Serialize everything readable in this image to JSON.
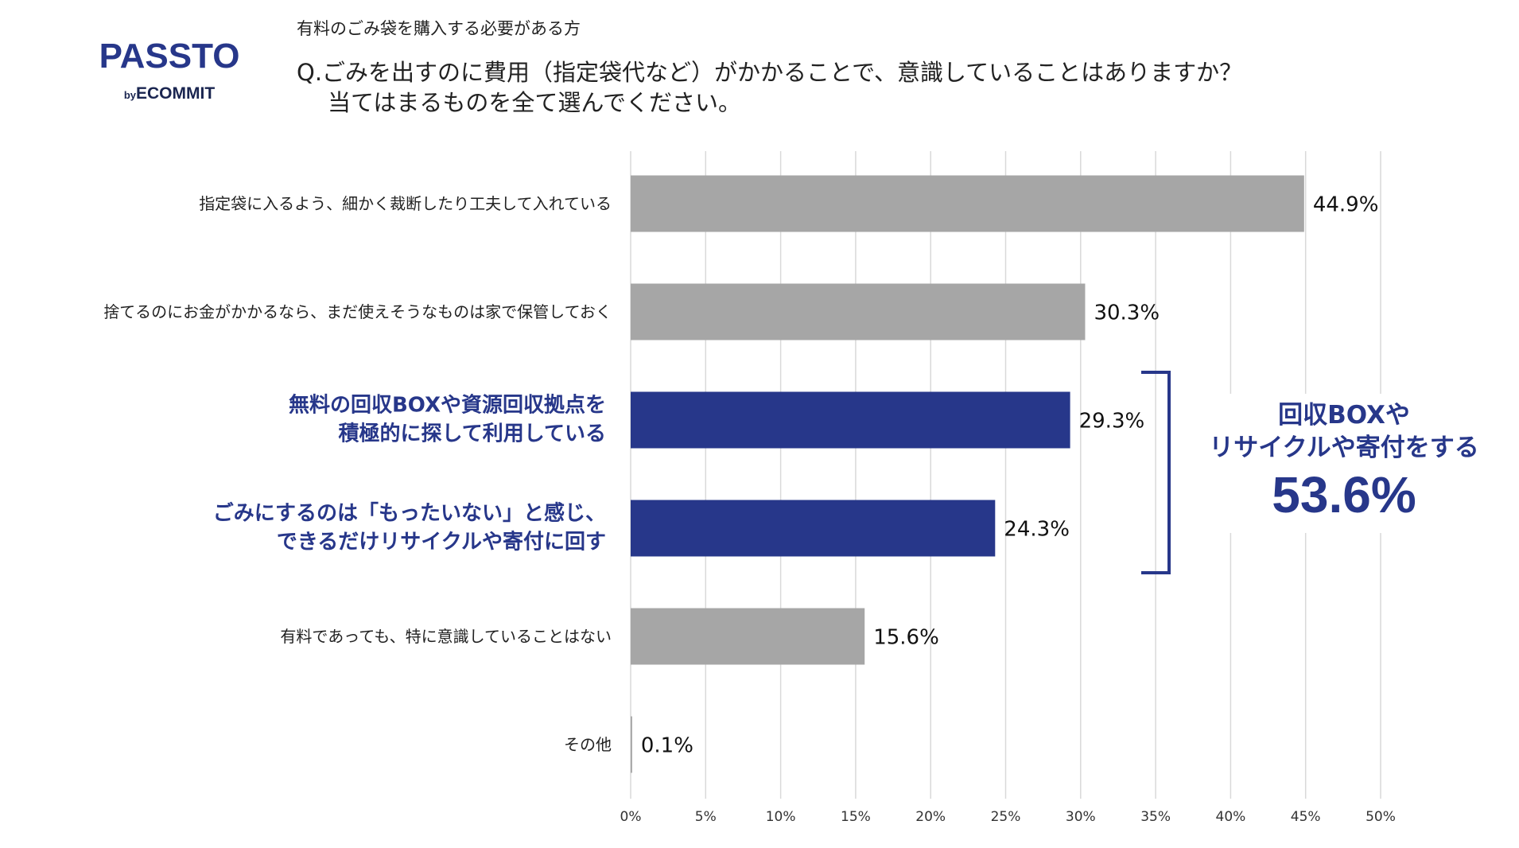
{
  "logo": {
    "name": "PASSTO",
    "by": "by",
    "brand": "ECOMMIT"
  },
  "chart_data": {
    "type": "hbar",
    "subtitle": "有料のごみ袋を購入する必要がある方",
    "title": [
      "Q.ごみを出すのに費用（指定袋代など）がかかることで、意識していることはありますか？",
      "当てはまるものを全て選んでください。"
    ],
    "categories": [
      "指定袋に入るよう、細かく裁断したり工夫して入れている",
      "捨てるのにお金がかかるなら、まだ使えそうなものは家で保管しておく",
      "無料の回収BOXや資源回収拠点を\n積極的に探して利用している",
      "ごみにするのは「もったいない」と感じ、\nできるだけリサイクルや寄付に回す",
      "有料であっても、特に意識していることはない",
      "その他"
    ],
    "values": [
      44.9,
      30.3,
      29.3,
      24.3,
      15.6,
      0.1
    ],
    "value_labels": [
      "44.9%",
      "30.3%",
      "29.3%",
      "24.3%",
      "15.6%",
      "0.1%"
    ],
    "colors": [
      "#a6a6a6",
      "#a6a6a6",
      "#27378a",
      "#27378a",
      "#a6a6a6",
      "#a6a6a6"
    ],
    "label_colors": [
      "#222222",
      "#222222",
      "#27378a",
      "#27378a",
      "#222222",
      "#222222"
    ],
    "xlim": [
      0,
      50
    ],
    "xticks": [
      {
        "value": 0,
        "label": "0%"
      },
      {
        "value": 5,
        "label": "5%"
      },
      {
        "value": 10,
        "label": "10%"
      },
      {
        "value": 15,
        "label": "15%"
      },
      {
        "value": 20,
        "label": "20%"
      },
      {
        "value": 25,
        "label": "25%"
      },
      {
        "value": 30,
        "label": "30%"
      },
      {
        "value": 35,
        "label": "35%"
      },
      {
        "value": 40,
        "label": "40%"
      },
      {
        "value": 45,
        "label": "45%"
      },
      {
        "value": 50,
        "label": "50%"
      }
    ],
    "grid": true,
    "annotation": {
      "text": "回収BOXや\nリサイクルや寄付をする",
      "value_label": "53.6%"
    }
  }
}
